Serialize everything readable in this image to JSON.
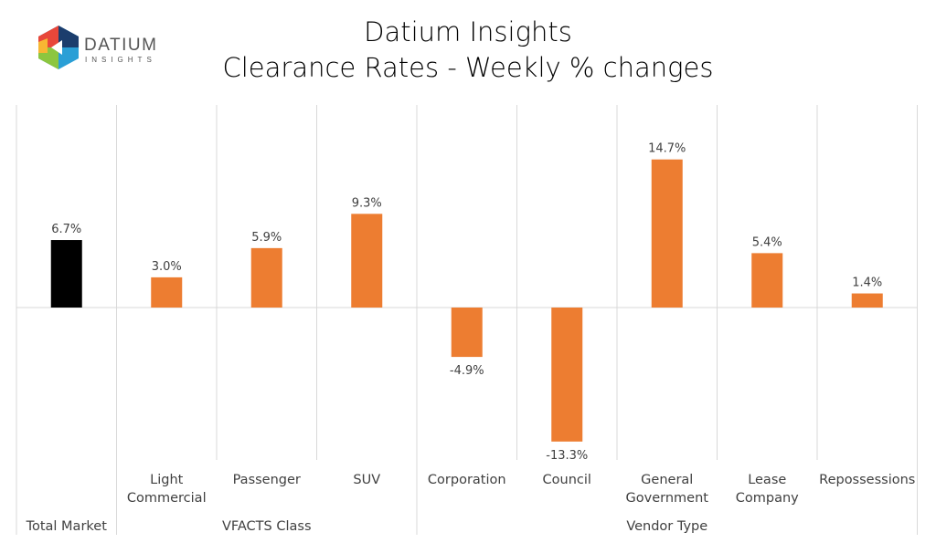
{
  "header": {
    "title": "Datium Insights",
    "subtitle": "Clearance Rates - Weekly % changes",
    "logo_text": "DATIUM",
    "logo_subtext": "INSIGHTS"
  },
  "colors": {
    "total": "#000000",
    "segment": "#ED7D31",
    "grid": "#D9D9D9"
  },
  "chart_data": {
    "type": "bar",
    "title": "Clearance Rates - Weekly % changes",
    "categories": [
      {
        "label": [
          "Total Market"
        ],
        "group": "Total Market",
        "value": 6.7,
        "data_label": "6.7%"
      },
      {
        "label": [
          "Light",
          "Commercial"
        ],
        "group": "VFACTS Class",
        "value": 3.0,
        "data_label": "3.0%"
      },
      {
        "label": [
          "Passenger"
        ],
        "group": "VFACTS Class",
        "value": 5.9,
        "data_label": "5.9%"
      },
      {
        "label": [
          "SUV"
        ],
        "group": "VFACTS Class",
        "value": 9.3,
        "data_label": "9.3%"
      },
      {
        "label": [
          "Corporation"
        ],
        "group": "Vendor Type",
        "value": -4.9,
        "data_label": "-4.9%"
      },
      {
        "label": [
          "Council"
        ],
        "group": "Vendor Type",
        "value": -13.3,
        "data_label": "-13.3%"
      },
      {
        "label": [
          "General",
          "Government"
        ],
        "group": "Vendor Type",
        "value": 14.7,
        "data_label": "14.7%"
      },
      {
        "label": [
          "Lease",
          "Company"
        ],
        "group": "Vendor Type",
        "value": 5.4,
        "data_label": "5.4%"
      },
      {
        "label": [
          "Repossessions"
        ],
        "group": "Vendor Type",
        "value": 1.4,
        "data_label": "1.4%"
      }
    ],
    "groups": [
      "Total Market",
      "VFACTS Class",
      "Vendor Type"
    ],
    "ylim": [
      -16,
      20
    ],
    "grid": false
  }
}
